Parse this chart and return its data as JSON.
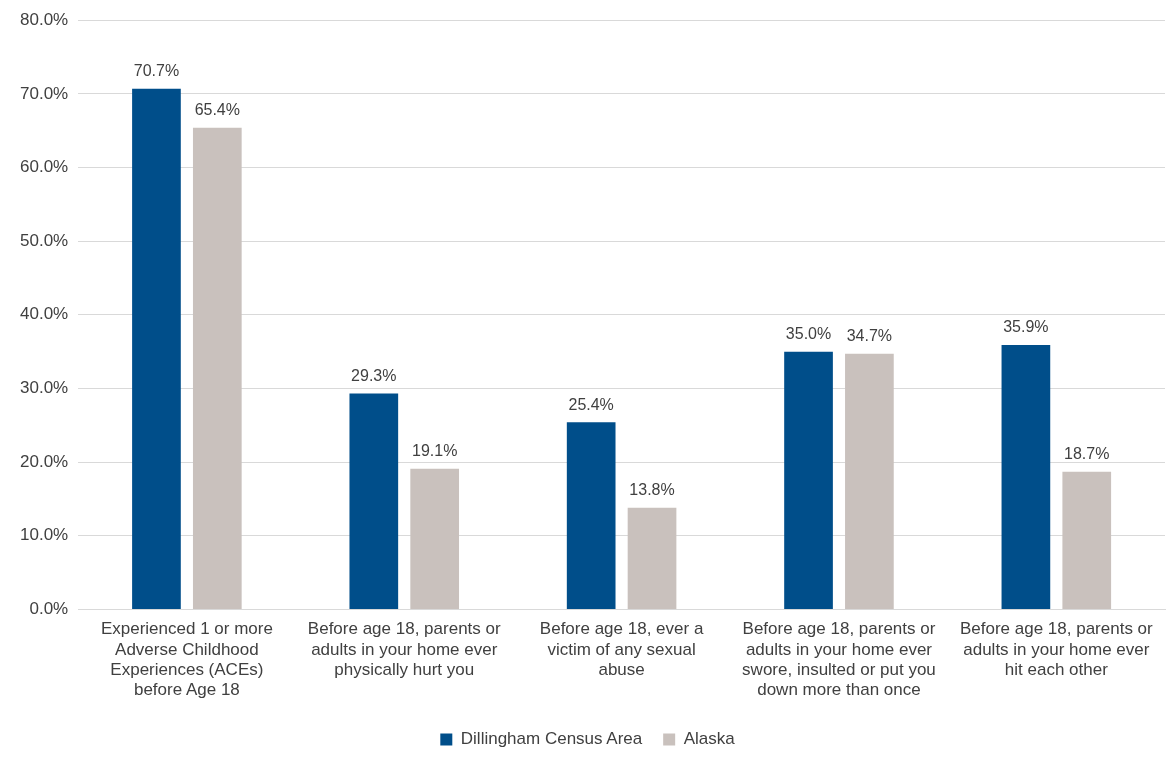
{
  "chart_data": {
    "type": "bar",
    "categories": [
      "Experienced 1 or more Adverse Childhood Experiences (ACEs) before Age 18",
      "Before age 18, parents or adults in your home ever physically hurt you",
      "Before age 18, ever a victim of any sexual abuse",
      "Before age 18, parents or adults in your home ever swore, insulted or put you down more than once",
      "Before age 18, parents or adults in your home ever hit each other"
    ],
    "series": [
      {
        "name": "Dillingham Census Area",
        "color": "#004e8a",
        "values": [
          70.7,
          29.3,
          25.4,
          35.0,
          35.9
        ],
        "value_labels": [
          "70.7%",
          "29.3%",
          "25.4%",
          "35.0%",
          "35.9%"
        ]
      },
      {
        "name": "Alaska",
        "color": "#c9c1bd",
        "values": [
          65.4,
          19.1,
          13.8,
          34.7,
          18.7
        ],
        "value_labels": [
          "65.4%",
          "19.1%",
          "13.8%",
          "34.7%",
          "18.7%"
        ]
      }
    ],
    "ylim": [
      0,
      80
    ],
    "yticks": [
      {
        "value": 0,
        "label": "0.0%"
      },
      {
        "value": 10,
        "label": "10.0%"
      },
      {
        "value": 20,
        "label": "20.0%"
      },
      {
        "value": 30,
        "label": "30.0%"
      },
      {
        "value": 40,
        "label": "40.0%"
      },
      {
        "value": 50,
        "label": "50.0%"
      },
      {
        "value": 60,
        "label": "60.0%"
      },
      {
        "value": 70,
        "label": "70.0%"
      },
      {
        "value": 80,
        "label": "80.0%"
      }
    ],
    "grid": "y",
    "legend": "bottom"
  }
}
